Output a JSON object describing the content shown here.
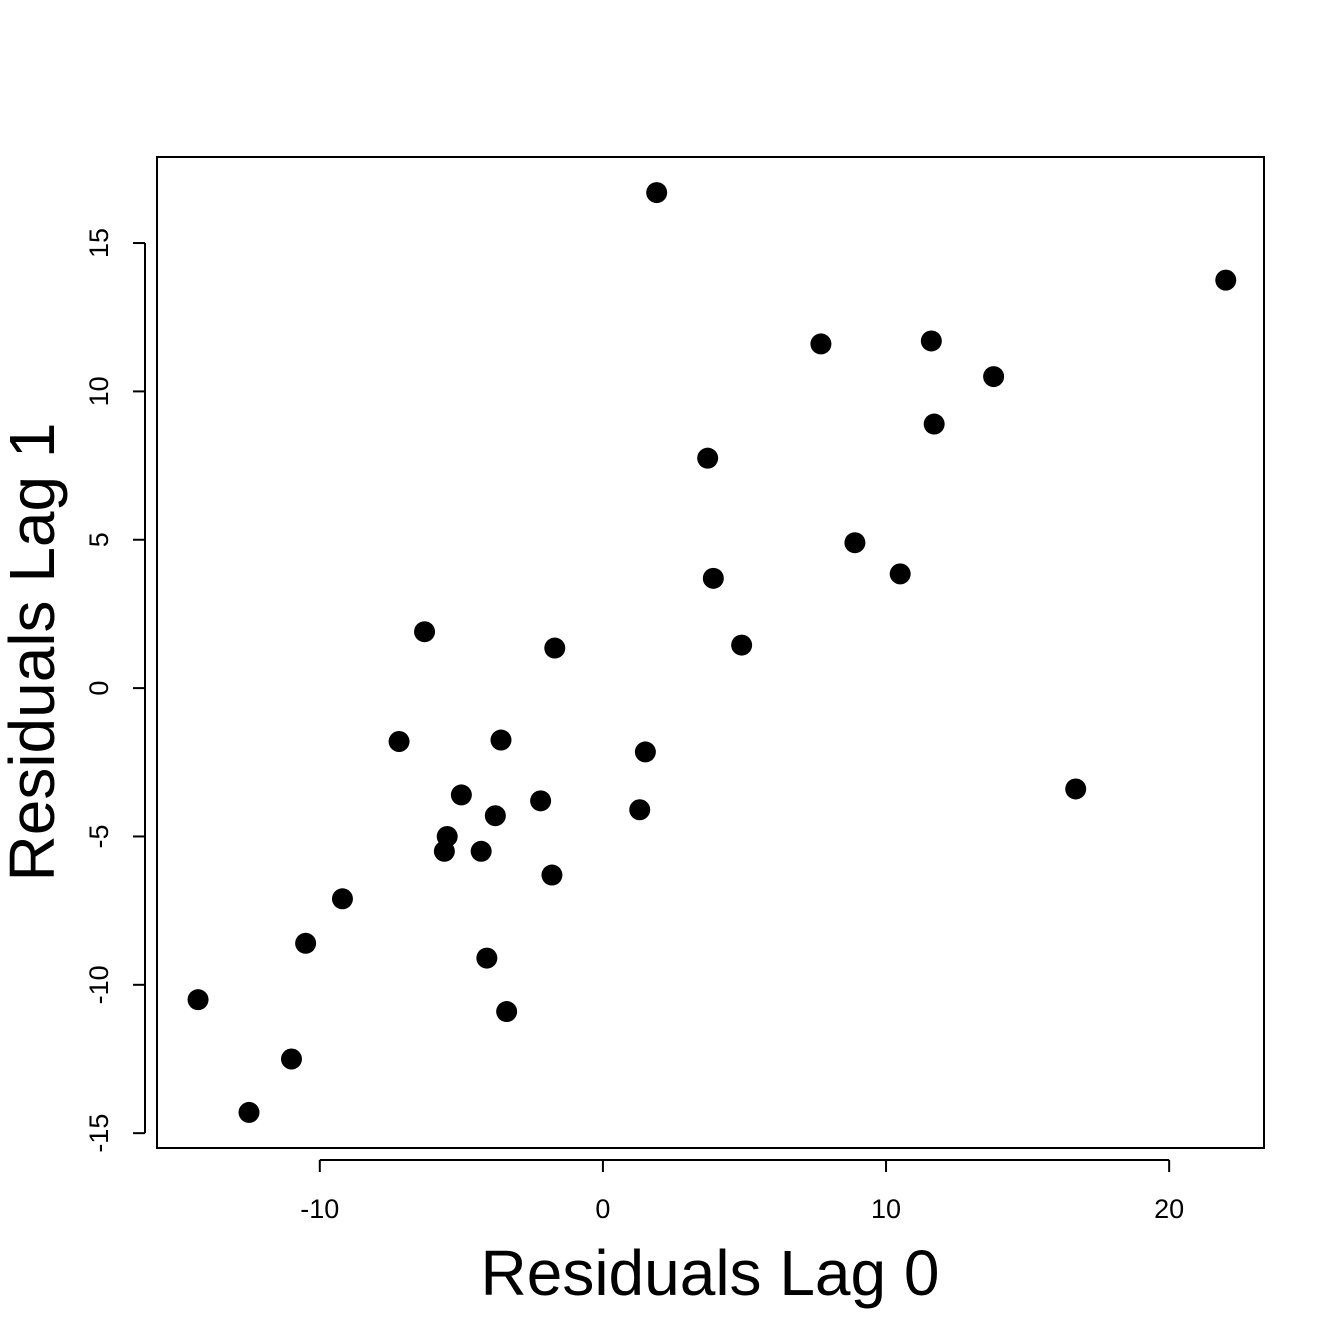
{
  "chart_data": {
    "type": "scatter",
    "title": "",
    "xlabel": "Residuals Lag 0",
    "ylabel": "Residuals Lag 1",
    "xlim": [
      -15.75,
      23.35
    ],
    "ylim": [
      -15.5,
      17.9
    ],
    "x_ticks": [
      "-10",
      "0",
      "10",
      "20"
    ],
    "y_ticks": [
      "-15",
      "-10",
      "-5",
      "0",
      "5",
      "10",
      "15"
    ],
    "grid": false,
    "legend": "none",
    "marker_color": "#000000",
    "points": [
      {
        "x": -14.3,
        "y": -10.5
      },
      {
        "x": -12.5,
        "y": -14.3
      },
      {
        "x": -11.0,
        "y": -12.5
      },
      {
        "x": -10.5,
        "y": -8.6
      },
      {
        "x": -9.2,
        "y": -7.1
      },
      {
        "x": -7.2,
        "y": -1.8
      },
      {
        "x": -6.3,
        "y": 1.9
      },
      {
        "x": -5.5,
        "y": -5.0
      },
      {
        "x": -5.6,
        "y": -5.5
      },
      {
        "x": -5.0,
        "y": -3.6
      },
      {
        "x": -4.3,
        "y": -5.5
      },
      {
        "x": -4.1,
        "y": -9.1
      },
      {
        "x": -3.8,
        "y": -4.3
      },
      {
        "x": -3.6,
        "y": -1.75
      },
      {
        "x": -3.4,
        "y": -10.9
      },
      {
        "x": -2.2,
        "y": -3.8
      },
      {
        "x": -1.8,
        "y": -6.3
      },
      {
        "x": -1.7,
        "y": 1.35
      },
      {
        "x": 1.3,
        "y": -4.1
      },
      {
        "x": 1.5,
        "y": -2.15
      },
      {
        "x": 1.9,
        "y": 16.7
      },
      {
        "x": 3.7,
        "y": 7.75
      },
      {
        "x": 3.9,
        "y": 3.7
      },
      {
        "x": 4.9,
        "y": 1.45
      },
      {
        "x": 7.7,
        "y": 11.6
      },
      {
        "x": 8.9,
        "y": 4.9
      },
      {
        "x": 10.5,
        "y": 3.85
      },
      {
        "x": 11.6,
        "y": 11.7
      },
      {
        "x": 11.7,
        "y": 8.9
      },
      {
        "x": 13.8,
        "y": 10.5
      },
      {
        "x": 16.7,
        "y": -3.4
      },
      {
        "x": 22.0,
        "y": 13.75
      }
    ]
  }
}
